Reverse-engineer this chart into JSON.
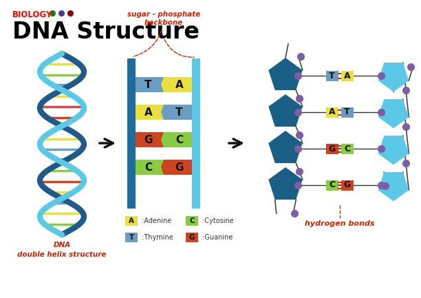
{
  "title": "DNA Structure",
  "biology_label": "BIOLOGY",
  "dot_colors": [
    "#1a7a1a",
    "#483D8B",
    "#8B0000"
  ],
  "title_color": "#000000",
  "biology_color": "#FF0000",
  "bg_color": "#FFFFFF",
  "base_pairs": [
    [
      "T",
      "A"
    ],
    [
      "A",
      "T"
    ],
    [
      "G",
      "C"
    ],
    [
      "C",
      "G"
    ]
  ],
  "base_colors": {
    "A": "#E8E040",
    "T": "#6B9DC2",
    "G": "#CC4422",
    "C": "#88CC44"
  },
  "backbone_color_left": "#1E6B9E",
  "backbone_color_right": "#5BC8E8",
  "arrow_color": "#111111",
  "pentagon_left_color": "#1A5F85",
  "pentagon_right_color": "#5BC8E8",
  "hbond_color": "#7B5EA7",
  "hbond_line_color": "#CC2200",
  "label_dna": "DNA\ndouble helix structure",
  "label_hbonds": "hydrogen bonds",
  "label_backbone": "sugar - phosphate\nbackbone",
  "label_color_red": "#CC2200",
  "legend_items": [
    {
      "letter": "A",
      "name": "Adenine",
      "color": "#E8E040"
    },
    {
      "letter": "C",
      "name": "Cytosine",
      "color": "#88CC44"
    },
    {
      "letter": "T",
      "name": "Thymine",
      "color": "#6B9DC2"
    },
    {
      "letter": "G",
      "name": "Guanine",
      "color": "#CC4422"
    }
  ],
  "rung_colors_left": [
    "#6B9DC2",
    "#E8E040",
    "#CC4422",
    "#88CC44"
  ],
  "rung_colors_right": [
    "#E8E040",
    "#6B9DC2",
    "#88CC44",
    "#CC4422"
  ]
}
